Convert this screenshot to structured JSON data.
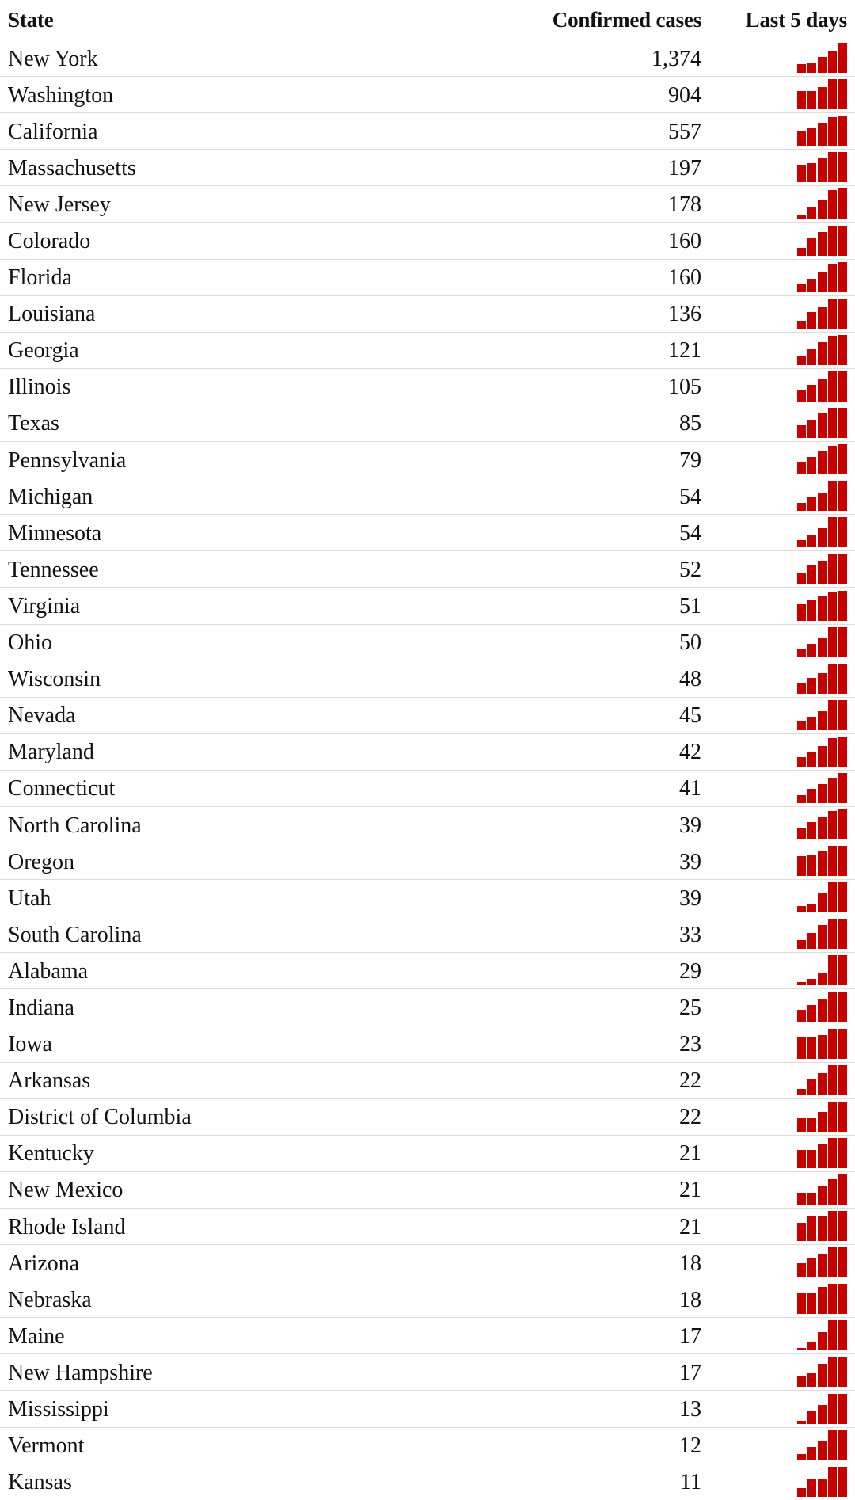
{
  "page": {
    "background_color": "#ffffff",
    "text_color": "#121212",
    "divider_color": "#dcdcdc",
    "accent_color": "#c70000"
  },
  "table": {
    "columns": [
      {
        "key": "state",
        "label": "State",
        "align": "left"
      },
      {
        "key": "cases",
        "label": "Confirmed cases",
        "align": "right"
      },
      {
        "key": "spark",
        "label": "Last 5 days",
        "align": "right"
      }
    ],
    "rows": [
      {
        "state": "New York",
        "cases": "1,374",
        "spark": [
          0.3,
          0.33,
          0.53,
          0.72,
          1.0
        ]
      },
      {
        "state": "Washington",
        "cases": "904",
        "spark": [
          0.6,
          0.6,
          0.73,
          1.0,
          1.0
        ]
      },
      {
        "state": "California",
        "cases": "557",
        "spark": [
          0.5,
          0.57,
          0.77,
          0.96,
          1.0
        ]
      },
      {
        "state": "Massachusetts",
        "cases": "197",
        "spark": [
          0.58,
          0.64,
          0.82,
          1.0,
          1.0
        ]
      },
      {
        "state": "New Jersey",
        "cases": "178",
        "spark": [
          0.11,
          0.36,
          0.6,
          0.94,
          1.0
        ]
      },
      {
        "state": "Colorado",
        "cases": "160",
        "spark": [
          0.27,
          0.6,
          0.78,
          1.0,
          1.0
        ]
      },
      {
        "state": "Florida",
        "cases": "160",
        "spark": [
          0.27,
          0.45,
          0.69,
          0.96,
          1.0
        ]
      },
      {
        "state": "Louisiana",
        "cases": "136",
        "spark": [
          0.26,
          0.54,
          0.72,
          1.0,
          1.0
        ]
      },
      {
        "state": "Georgia",
        "cases": "121",
        "spark": [
          0.3,
          0.53,
          0.75,
          0.97,
          1.0
        ]
      },
      {
        "state": "Illinois",
        "cases": "105",
        "spark": [
          0.37,
          0.55,
          0.77,
          1.0,
          1.0
        ]
      },
      {
        "state": "Texas",
        "cases": "85",
        "spark": [
          0.43,
          0.6,
          0.82,
          1.0,
          1.0
        ]
      },
      {
        "state": "Pennsylvania",
        "cases": "79",
        "spark": [
          0.42,
          0.57,
          0.75,
          0.94,
          1.0
        ]
      },
      {
        "state": "Michigan",
        "cases": "54",
        "spark": [
          0.27,
          0.44,
          0.6,
          1.0,
          1.0
        ]
      },
      {
        "state": "Minnesota",
        "cases": "54",
        "spark": [
          0.24,
          0.4,
          0.62,
          1.0,
          1.0
        ]
      },
      {
        "state": "Tennessee",
        "cases": "52",
        "spark": [
          0.38,
          0.6,
          0.76,
          1.0,
          1.0
        ]
      },
      {
        "state": "Virginia",
        "cases": "51",
        "spark": [
          0.55,
          0.7,
          0.82,
          0.94,
          1.0
        ]
      },
      {
        "state": "Ohio",
        "cases": "50",
        "spark": [
          0.25,
          0.45,
          0.67,
          1.0,
          1.0
        ]
      },
      {
        "state": "Wisconsin",
        "cases": "48",
        "spark": [
          0.34,
          0.53,
          0.69,
          1.0,
          1.0
        ]
      },
      {
        "state": "Nevada",
        "cases": "45",
        "spark": [
          0.3,
          0.45,
          0.64,
          1.0,
          1.0
        ]
      },
      {
        "state": "Maryland",
        "cases": "42",
        "spark": [
          0.31,
          0.5,
          0.68,
          0.95,
          1.0
        ]
      },
      {
        "state": "Connecticut",
        "cases": "41",
        "spark": [
          0.26,
          0.48,
          0.64,
          0.85,
          1.0
        ]
      },
      {
        "state": "North Carolina",
        "cases": "39",
        "spark": [
          0.37,
          0.58,
          0.76,
          0.96,
          1.0
        ]
      },
      {
        "state": "Oregon",
        "cases": "39",
        "spark": [
          0.65,
          0.72,
          0.82,
          1.0,
          1.0
        ]
      },
      {
        "state": "Utah",
        "cases": "39",
        "spark": [
          0.21,
          0.3,
          0.66,
          1.0,
          1.0
        ]
      },
      {
        "state": "South Carolina",
        "cases": "33",
        "spark": [
          0.29,
          0.53,
          0.8,
          1.0,
          1.0
        ]
      },
      {
        "state": "Alabama",
        "cases": "29",
        "spark": [
          0.1,
          0.2,
          0.4,
          1.0,
          1.0
        ]
      },
      {
        "state": "Indiana",
        "cases": "25",
        "spark": [
          0.42,
          0.59,
          0.79,
          1.0,
          1.0
        ]
      },
      {
        "state": "Iowa",
        "cases": "23",
        "spark": [
          0.7,
          0.7,
          0.78,
          1.0,
          1.0
        ]
      },
      {
        "state": "Arkansas",
        "cases": "22",
        "spark": [
          0.21,
          0.53,
          0.74,
          1.0,
          1.0
        ]
      },
      {
        "state": "District of Columbia",
        "cases": "22",
        "spark": [
          0.44,
          0.44,
          0.67,
          1.0,
          1.0
        ]
      },
      {
        "state": "Kentucky",
        "cases": "21",
        "spark": [
          0.6,
          0.6,
          0.82,
          1.0,
          1.0
        ]
      },
      {
        "state": "New Mexico",
        "cases": "21",
        "spark": [
          0.4,
          0.4,
          0.6,
          0.85,
          1.0
        ]
      },
      {
        "state": "Rhode Island",
        "cases": "21",
        "spark": [
          0.6,
          0.85,
          0.85,
          1.0,
          1.0
        ]
      },
      {
        "state": "Arizona",
        "cases": "18",
        "spark": [
          0.47,
          0.67,
          0.75,
          1.0,
          1.0
        ]
      },
      {
        "state": "Nebraska",
        "cases": "18",
        "spark": [
          0.72,
          0.72,
          0.9,
          1.0,
          1.0
        ]
      },
      {
        "state": "Maine",
        "cases": "17",
        "spark": [
          0.07,
          0.25,
          0.6,
          1.0,
          1.0
        ]
      },
      {
        "state": "New Hampshire",
        "cases": "17",
        "spark": [
          0.33,
          0.45,
          0.75,
          1.0,
          1.0
        ]
      },
      {
        "state": "Mississippi",
        "cases": "13",
        "spark": [
          0.1,
          0.42,
          0.62,
          1.0,
          1.0
        ]
      },
      {
        "state": "Vermont",
        "cases": "12",
        "spark": [
          0.2,
          0.45,
          0.65,
          1.0,
          1.0
        ]
      },
      {
        "state": "Kansas",
        "cases": "11",
        "spark": [
          0.3,
          0.6,
          0.6,
          1.0,
          1.0
        ]
      }
    ]
  },
  "chart_data": {
    "type": "table",
    "title": "",
    "columns": [
      "State",
      "Confirmed cases",
      "Last 5 days"
    ],
    "sparkline_type": "bar",
    "sparkline_note": "5 bars per state, relative heights (fraction of max) of cumulative cases over the last 5 days",
    "sparkline_color": "#c70000",
    "rows": [
      {
        "state": "New York",
        "confirmed_cases": 1374,
        "last_5_days_relative": [
          0.3,
          0.33,
          0.53,
          0.72,
          1.0
        ]
      },
      {
        "state": "Washington",
        "confirmed_cases": 904,
        "last_5_days_relative": [
          0.6,
          0.6,
          0.73,
          1.0,
          1.0
        ]
      },
      {
        "state": "California",
        "confirmed_cases": 557,
        "last_5_days_relative": [
          0.5,
          0.57,
          0.77,
          0.96,
          1.0
        ]
      },
      {
        "state": "Massachusetts",
        "confirmed_cases": 197,
        "last_5_days_relative": [
          0.58,
          0.64,
          0.82,
          1.0,
          1.0
        ]
      },
      {
        "state": "New Jersey",
        "confirmed_cases": 178,
        "last_5_days_relative": [
          0.11,
          0.36,
          0.6,
          0.94,
          1.0
        ]
      },
      {
        "state": "Colorado",
        "confirmed_cases": 160,
        "last_5_days_relative": [
          0.27,
          0.6,
          0.78,
          1.0,
          1.0
        ]
      },
      {
        "state": "Florida",
        "confirmed_cases": 160,
        "last_5_days_relative": [
          0.27,
          0.45,
          0.69,
          0.96,
          1.0
        ]
      },
      {
        "state": "Louisiana",
        "confirmed_cases": 136,
        "last_5_days_relative": [
          0.26,
          0.54,
          0.72,
          1.0,
          1.0
        ]
      },
      {
        "state": "Georgia",
        "confirmed_cases": 121,
        "last_5_days_relative": [
          0.3,
          0.53,
          0.75,
          0.97,
          1.0
        ]
      },
      {
        "state": "Illinois",
        "confirmed_cases": 105,
        "last_5_days_relative": [
          0.37,
          0.55,
          0.77,
          1.0,
          1.0
        ]
      },
      {
        "state": "Texas",
        "confirmed_cases": 85,
        "last_5_days_relative": [
          0.43,
          0.6,
          0.82,
          1.0,
          1.0
        ]
      },
      {
        "state": "Pennsylvania",
        "confirmed_cases": 79,
        "last_5_days_relative": [
          0.42,
          0.57,
          0.75,
          0.94,
          1.0
        ]
      },
      {
        "state": "Michigan",
        "confirmed_cases": 54,
        "last_5_days_relative": [
          0.27,
          0.44,
          0.6,
          1.0,
          1.0
        ]
      },
      {
        "state": "Minnesota",
        "confirmed_cases": 54,
        "last_5_days_relative": [
          0.24,
          0.4,
          0.62,
          1.0,
          1.0
        ]
      },
      {
        "state": "Tennessee",
        "confirmed_cases": 52,
        "last_5_days_relative": [
          0.38,
          0.6,
          0.76,
          1.0,
          1.0
        ]
      },
      {
        "state": "Virginia",
        "confirmed_cases": 51,
        "last_5_days_relative": [
          0.55,
          0.7,
          0.82,
          0.94,
          1.0
        ]
      },
      {
        "state": "Ohio",
        "confirmed_cases": 50,
        "last_5_days_relative": [
          0.25,
          0.45,
          0.67,
          1.0,
          1.0
        ]
      },
      {
        "state": "Wisconsin",
        "confirmed_cases": 48,
        "last_5_days_relative": [
          0.34,
          0.53,
          0.69,
          1.0,
          1.0
        ]
      },
      {
        "state": "Nevada",
        "confirmed_cases": 45,
        "last_5_days_relative": [
          0.3,
          0.45,
          0.64,
          1.0,
          1.0
        ]
      },
      {
        "state": "Maryland",
        "confirmed_cases": 42,
        "last_5_days_relative": [
          0.31,
          0.5,
          0.68,
          0.95,
          1.0
        ]
      },
      {
        "state": "Connecticut",
        "confirmed_cases": 41,
        "last_5_days_relative": [
          0.26,
          0.48,
          0.64,
          0.85,
          1.0
        ]
      },
      {
        "state": "North Carolina",
        "confirmed_cases": 39,
        "last_5_days_relative": [
          0.37,
          0.58,
          0.76,
          0.96,
          1.0
        ]
      },
      {
        "state": "Oregon",
        "confirmed_cases": 39,
        "last_5_days_relative": [
          0.65,
          0.72,
          0.82,
          1.0,
          1.0
        ]
      },
      {
        "state": "Utah",
        "confirmed_cases": 39,
        "last_5_days_relative": [
          0.21,
          0.3,
          0.66,
          1.0,
          1.0
        ]
      },
      {
        "state": "South Carolina",
        "confirmed_cases": 33,
        "last_5_days_relative": [
          0.29,
          0.53,
          0.8,
          1.0,
          1.0
        ]
      },
      {
        "state": "Alabama",
        "confirmed_cases": 29,
        "last_5_days_relative": [
          0.1,
          0.2,
          0.4,
          1.0,
          1.0
        ]
      },
      {
        "state": "Indiana",
        "confirmed_cases": 25,
        "last_5_days_relative": [
          0.42,
          0.59,
          0.79,
          1.0,
          1.0
        ]
      },
      {
        "state": "Iowa",
        "confirmed_cases": 23,
        "last_5_days_relative": [
          0.7,
          0.7,
          0.78,
          1.0,
          1.0
        ]
      },
      {
        "state": "Arkansas",
        "confirmed_cases": 22,
        "last_5_days_relative": [
          0.21,
          0.53,
          0.74,
          1.0,
          1.0
        ]
      },
      {
        "state": "District of Columbia",
        "confirmed_cases": 22,
        "last_5_days_relative": [
          0.44,
          0.44,
          0.67,
          1.0,
          1.0
        ]
      },
      {
        "state": "Kentucky",
        "confirmed_cases": 21,
        "last_5_days_relative": [
          0.6,
          0.6,
          0.82,
          1.0,
          1.0
        ]
      },
      {
        "state": "New Mexico",
        "confirmed_cases": 21,
        "last_5_days_relative": [
          0.4,
          0.4,
          0.6,
          0.85,
          1.0
        ]
      },
      {
        "state": "Rhode Island",
        "confirmed_cases": 21,
        "last_5_days_relative": [
          0.6,
          0.85,
          0.85,
          1.0,
          1.0
        ]
      },
      {
        "state": "Arizona",
        "confirmed_cases": 18,
        "last_5_days_relative": [
          0.47,
          0.67,
          0.75,
          1.0,
          1.0
        ]
      },
      {
        "state": "Nebraska",
        "confirmed_cases": 18,
        "last_5_days_relative": [
          0.72,
          0.72,
          0.9,
          1.0,
          1.0
        ]
      },
      {
        "state": "Maine",
        "confirmed_cases": 17,
        "last_5_days_relative": [
          0.07,
          0.25,
          0.6,
          1.0,
          1.0
        ]
      },
      {
        "state": "New Hampshire",
        "confirmed_cases": 17,
        "last_5_days_relative": [
          0.33,
          0.45,
          0.75,
          1.0,
          1.0
        ]
      },
      {
        "state": "Mississippi",
        "confirmed_cases": 13,
        "last_5_days_relative": [
          0.1,
          0.42,
          0.62,
          1.0,
          1.0
        ]
      },
      {
        "state": "Vermont",
        "confirmed_cases": 12,
        "last_5_days_relative": [
          0.2,
          0.45,
          0.65,
          1.0,
          1.0
        ]
      },
      {
        "state": "Kansas",
        "confirmed_cases": 11,
        "last_5_days_relative": [
          0.3,
          0.6,
          0.6,
          1.0,
          1.0
        ]
      }
    ]
  }
}
